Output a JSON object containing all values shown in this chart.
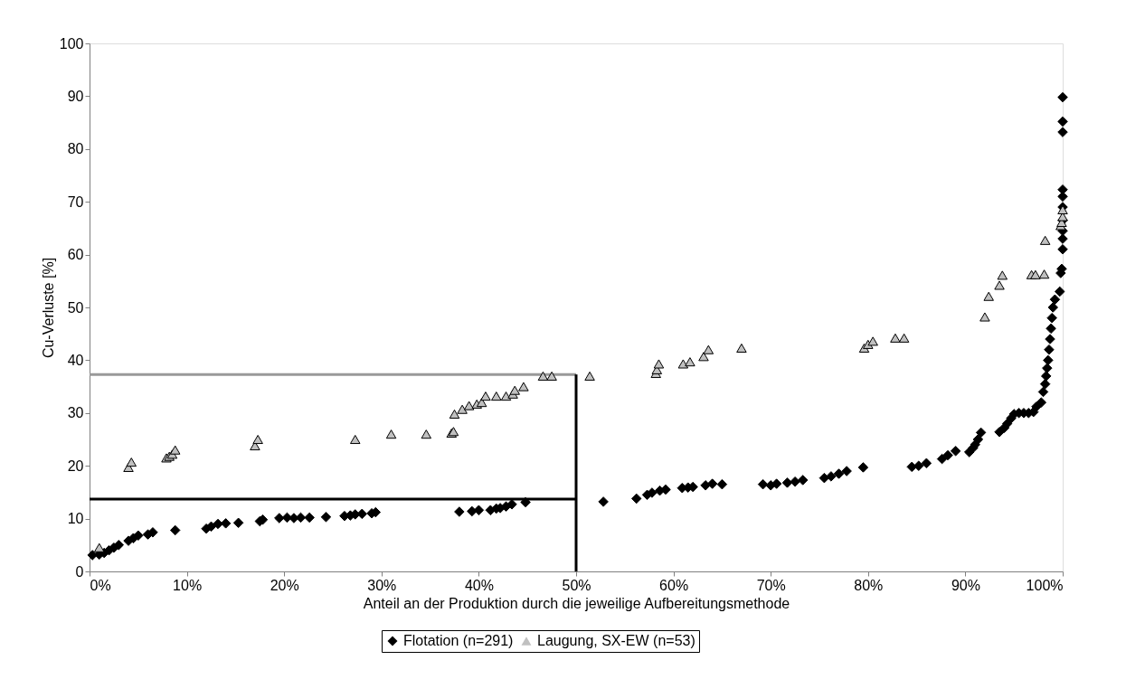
{
  "chart_data": {
    "type": "scatter",
    "xlabel": "Anteil an der Produktion durch die jeweilige Aufbereitungsmethode",
    "ylabel": "Cu-Verluste [%]",
    "xlim": [
      0,
      100
    ],
    "xticks": [
      {
        "value": 0,
        "label": "0%"
      },
      {
        "value": 10,
        "label": "10%"
      },
      {
        "value": 20,
        "label": "20%"
      },
      {
        "value": 30,
        "label": "30%"
      },
      {
        "value": 40,
        "label": "40%"
      },
      {
        "value": 50,
        "label": "50%"
      },
      {
        "value": 60,
        "label": "60%"
      },
      {
        "value": 70,
        "label": "70%"
      },
      {
        "value": 80,
        "label": "80%"
      },
      {
        "value": 90,
        "label": "90%"
      },
      {
        "value": 100,
        "label": "100%"
      }
    ],
    "ylim": [
      0,
      100
    ],
    "yticks": [
      0,
      10,
      20,
      30,
      40,
      50,
      60,
      70,
      80,
      90,
      100
    ],
    "grid": false,
    "legend": "bottom",
    "series": [
      {
        "name": "Flotation (n=291)",
        "marker": "diamond",
        "color": "#000000",
        "x": [
          0.3,
          1,
          1.5,
          2,
          2.5,
          3,
          4,
          4.5,
          5,
          6,
          6.5,
          8.8,
          12,
          12.5,
          13.2,
          14,
          15.3,
          17.5,
          17.8,
          19.5,
          20.3,
          21,
          21.7,
          22.6,
          24.3,
          26.2,
          26.8,
          27.3,
          28,
          29,
          29.4,
          38,
          39.3,
          40,
          41.2,
          41.8,
          42.2,
          42.8,
          43.4,
          44.8,
          52.8,
          56.2,
          57.3,
          57.8,
          58.6,
          59.2,
          60.9,
          61.5,
          62,
          63.3,
          64,
          65,
          69.2,
          70,
          70.6,
          71.7,
          72.5,
          73.3,
          75.5,
          76.2,
          77,
          77.8,
          79.5,
          84.5,
          85.2,
          86,
          87.6,
          88.2,
          89,
          90.4,
          90.8,
          91,
          91.3,
          91.6,
          93.5,
          94,
          94.3,
          94.7,
          95,
          95.5,
          96,
          96.5,
          97,
          97.3,
          97.8,
          98,
          98.2,
          98.3,
          98.4,
          98.5,
          98.6,
          98.7,
          98.8,
          98.9,
          99,
          99.2,
          99.7,
          99.8,
          99.9,
          100,
          100,
          100,
          100,
          100,
          100,
          100,
          100,
          100,
          100
        ],
        "values": [
          3.1,
          3.2,
          3.5,
          4,
          4.5,
          5,
          5.8,
          6.3,
          6.8,
          7,
          7.4,
          7.8,
          8.1,
          8.5,
          9,
          9.1,
          9.2,
          9.5,
          9.8,
          10.1,
          10.2,
          10.1,
          10.2,
          10.2,
          10.3,
          10.5,
          10.6,
          10.8,
          10.9,
          11,
          11.2,
          11.3,
          11.4,
          11.6,
          11.6,
          11.9,
          12,
          12.3,
          12.7,
          13.1,
          13.2,
          13.8,
          14.5,
          14.9,
          15.3,
          15.5,
          15.8,
          15.9,
          16,
          16.3,
          16.6,
          16.5,
          16.5,
          16.3,
          16.6,
          16.8,
          17,
          17.3,
          17.7,
          18,
          18.5,
          19,
          19.7,
          19.8,
          20,
          20.5,
          21.3,
          22,
          22.8,
          22.6,
          23.4,
          24,
          25,
          26.3,
          26.4,
          27.2,
          28,
          29,
          29.8,
          30,
          30,
          30,
          30.2,
          31.2,
          32,
          34,
          35.5,
          37,
          38.5,
          40,
          42,
          44,
          46,
          48,
          50,
          51.5,
          53,
          56.5,
          57.3,
          61,
          63,
          64.5,
          66.5,
          69,
          71,
          72.3,
          83.2,
          85.2,
          89.8
        ]
      },
      {
        "name": "Laugung, SX-EW (n=53)",
        "marker": "triangle",
        "color": "#c0c0c0",
        "x": [
          1,
          4,
          4.3,
          7.9,
          8.2,
          8.5,
          8.8,
          17,
          17.3,
          27.3,
          31,
          34.6,
          37.2,
          37.4,
          37.5,
          38.3,
          39,
          39.8,
          40.3,
          40.7,
          41.8,
          42.8,
          43.5,
          43.7,
          44.6,
          46.6,
          47.5,
          51.4,
          58.2,
          58.3,
          58.5,
          61,
          61.7,
          63.1,
          63.6,
          67,
          79.6,
          80,
          80.5,
          82.8,
          83.7,
          92,
          92.4,
          93.5,
          93.8,
          96.8,
          97.2,
          98.1,
          98.2,
          99.8,
          99.9,
          100,
          100
        ],
        "values": [
          4.5,
          19.7,
          20.7,
          21.5,
          21.8,
          22.2,
          23,
          23.8,
          25,
          25,
          26,
          26,
          26.2,
          26.5,
          29.8,
          30.7,
          31.4,
          31.7,
          32,
          33.2,
          33.2,
          33.2,
          33.6,
          34.3,
          35,
          37,
          37,
          37,
          37.5,
          38.2,
          39.3,
          39.3,
          39.7,
          40.7,
          42,
          42.3,
          42.3,
          43,
          43.6,
          44.2,
          44.2,
          48.2,
          52.1,
          54.2,
          56.1,
          56.2,
          56.2,
          56.3,
          62.7,
          65.5,
          66.1,
          67.2,
          68.5
        ]
      },
      {
        "type": "line",
        "color": "#999999",
        "x": [
          0,
          50
        ],
        "values": [
          37.3,
          37.3
        ]
      },
      {
        "type": "line",
        "color": "#000000",
        "x": [
          0,
          50
        ],
        "values": [
          13.7,
          13.7
        ]
      },
      {
        "type": "line",
        "color": "#000000",
        "x": [
          50,
          50
        ],
        "values": [
          0,
          37.3
        ]
      }
    ]
  }
}
